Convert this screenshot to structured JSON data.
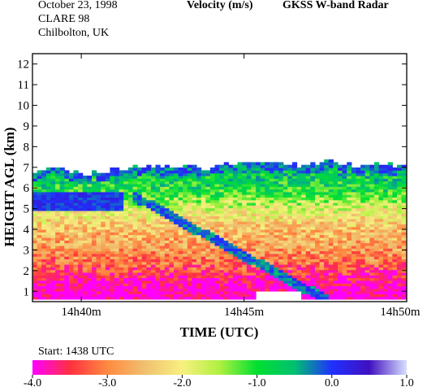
{
  "header": {
    "date": "October  23, 1998",
    "campaign": "CLARE 98",
    "location": "Chilbolton, UK",
    "quantity": "Velocity (m/s)",
    "instrument": "GKSS  W-band Radar"
  },
  "colorbar": {
    "start_label": "Start: 1438 UTC",
    "tick_labels": [
      "-4.0",
      "-3.0",
      "-2.0",
      "-1.0",
      "0.0",
      "1.0"
    ],
    "tick_values": [
      -4.0,
      -3.0,
      -2.0,
      -1.0,
      0.0,
      1.0
    ],
    "range": [
      -4.0,
      1.0
    ],
    "colors": [
      "#ff00ff",
      "#ff3040",
      "#ff8a40",
      "#f0c070",
      "#f8f080",
      "#b0f040",
      "#00e030",
      "#00c070",
      "#2030ff",
      "#4010c0",
      "#d8e0ff"
    ]
  },
  "chart_data": {
    "type": "heatmap",
    "title": "Velocity (m/s)",
    "xlabel": "TIME (UTC)",
    "ylabel": "HEIGHT AGL (km)",
    "x_tick_labels": [
      "14h40m",
      "14h45m",
      "14h50m"
    ],
    "x_ticks_minutes": [
      40,
      45,
      50
    ],
    "xlim_minutes": [
      38.5,
      50.0
    ],
    "y_tick_labels": [
      "1",
      "2",
      "3",
      "4",
      "5",
      "6",
      "7",
      "8",
      "9",
      "10",
      "11",
      "12"
    ],
    "y_ticks": [
      1,
      2,
      3,
      4,
      5,
      6,
      7,
      8,
      9,
      10,
      11,
      12
    ],
    "ylim_km": [
      0.5,
      12.5
    ],
    "cloud_top_km": [
      [
        38.5,
        6.8
      ],
      [
        39.2,
        6.9
      ],
      [
        40.0,
        6.7
      ],
      [
        40.8,
        6.8
      ],
      [
        41.5,
        6.9
      ],
      [
        42.2,
        7.0
      ],
      [
        43.0,
        7.0
      ],
      [
        43.8,
        6.9
      ],
      [
        44.5,
        7.1
      ],
      [
        45.2,
        7.2
      ],
      [
        46.0,
        7.1
      ],
      [
        46.8,
        7.0
      ],
      [
        47.5,
        7.2
      ],
      [
        48.2,
        7.0
      ],
      [
        49.0,
        7.1
      ],
      [
        50.0,
        7.0
      ]
    ],
    "velocity_profile_m_s": [
      {
        "height_km": 0.7,
        "velocity": -4.0
      },
      {
        "height_km": 1.5,
        "velocity": -3.8
      },
      {
        "height_km": 2.2,
        "velocity": -3.2
      },
      {
        "height_km": 3.0,
        "velocity": -2.8
      },
      {
        "height_km": 4.0,
        "velocity": -2.5
      },
      {
        "height_km": 5.0,
        "velocity": -1.8
      },
      {
        "height_km": 5.8,
        "velocity": -1.0
      },
      {
        "height_km": 6.5,
        "velocity": -0.8
      },
      {
        "height_km": 7.0,
        "velocity": -0.4
      }
    ],
    "colorbar_range": [
      -4.0,
      1.0
    ],
    "colorbar_units": "m/s"
  }
}
